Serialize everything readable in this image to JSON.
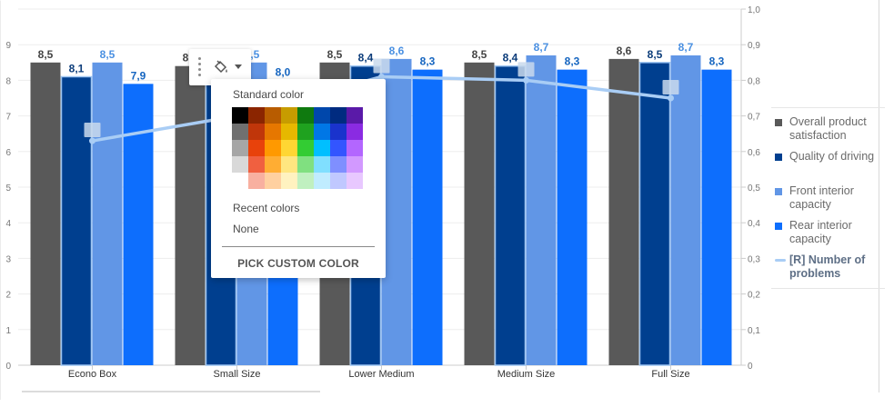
{
  "chart_data": {
    "type": "bar",
    "categories": [
      "Econo Box",
      "Small Size",
      "Lower Medium",
      "Medium Size",
      "Full Size"
    ],
    "series": [
      {
        "name": "Overall product satisfaction",
        "values": [
          8.5,
          8.4,
          8.5,
          8.5,
          8.6
        ],
        "labels": [
          "8,5",
          "8,4",
          "8,5",
          "8,5",
          "8,6"
        ],
        "color": "#595959",
        "label_color": "#444444"
      },
      {
        "name": "Quality of driving",
        "values": [
          8.1,
          8.2,
          8.4,
          8.4,
          8.5
        ],
        "labels": [
          "8,1",
          "8,2",
          "8,4",
          "8,4",
          "8,5"
        ],
        "color": "#003f8f",
        "label_color": "#0b3c7a"
      },
      {
        "name": "Front interior capacity",
        "values": [
          8.5,
          8.5,
          8.6,
          8.7,
          8.7
        ],
        "labels": [
          "8,5",
          "8,5",
          "8,6",
          "8,7",
          "8,7"
        ],
        "color": "#6196e6",
        "label_color": "#4a90e2"
      },
      {
        "name": "Rear interior capacity",
        "values": [
          7.9,
          8.0,
          8.3,
          8.3,
          8.3
        ],
        "labels": [
          "7,9",
          "8,0",
          "8,3",
          "8,3",
          "8,3"
        ],
        "color": "#0d6efd",
        "label_color": "#1565c0"
      }
    ],
    "line_series": {
      "name": "[R] Number of problems",
      "values": [
        0.63,
        0.7,
        0.81,
        0.8,
        0.75
      ],
      "color": "#a9cdf5",
      "axis": "right"
    },
    "ylim": [
      0,
      10
    ],
    "y_ticks": [
      "0",
      "1",
      "2",
      "3",
      "4",
      "5",
      "6",
      "7",
      "8",
      "9"
    ],
    "y2lim": [
      0,
      1
    ],
    "y2_ticks": [
      "0",
      "0,1",
      "0,2",
      "0,3",
      "0,4",
      "0,5",
      "0,6",
      "0,7",
      "0,8",
      "0,9",
      "1,0"
    ],
    "grid": true,
    "legend_position": "right",
    "xlabel": "",
    "ylabel": "",
    "title": ""
  },
  "legend": {
    "items": [
      {
        "label": "Overall product satisfaction",
        "color": "#595959",
        "kind": "square"
      },
      {
        "label": "Quality of driving",
        "color": "#003f8f",
        "kind": "square"
      },
      {
        "label": "Front interior capacity",
        "color": "#6196e6",
        "kind": "square"
      },
      {
        "label": "Rear interior capacity",
        "color": "#0d6efd",
        "kind": "square"
      },
      {
        "label": "[R] Number of problems",
        "color": "#a9cdf5",
        "kind": "line"
      }
    ]
  },
  "color_popup": {
    "standard_label": "Standard color",
    "recent_label": "Recent colors",
    "none_label": "None",
    "custom_button": "PICK CUSTOM COLOR",
    "palette": [
      [
        "#000000",
        "#8b2500",
        "#b85c00",
        "#c79c00",
        "#0f7a0f",
        "#0047ab",
        "#002b80",
        "#5a1aa8"
      ],
      [
        "#707070",
        "#c0360a",
        "#e67700",
        "#e6b800",
        "#1fa21f",
        "#0077e6",
        "#1a33cc",
        "#8a2be2"
      ],
      [
        "#a6a6a6",
        "#e8420b",
        "#ff9900",
        "#ffd633",
        "#33cc33",
        "#00bfff",
        "#3355ff",
        "#b366ff"
      ],
      [
        "#d9d9d9",
        "#f06040",
        "#ffad33",
        "#ffe680",
        "#80e080",
        "#80dfff",
        "#7f8fff",
        "#d299ff"
      ],
      [
        "#ffffff",
        "#f8b0a0",
        "#ffd0a0",
        "#fff2c0",
        "#c0f0c0",
        "#c0ecff",
        "#c0c8ff",
        "#e8c8ff"
      ]
    ]
  }
}
